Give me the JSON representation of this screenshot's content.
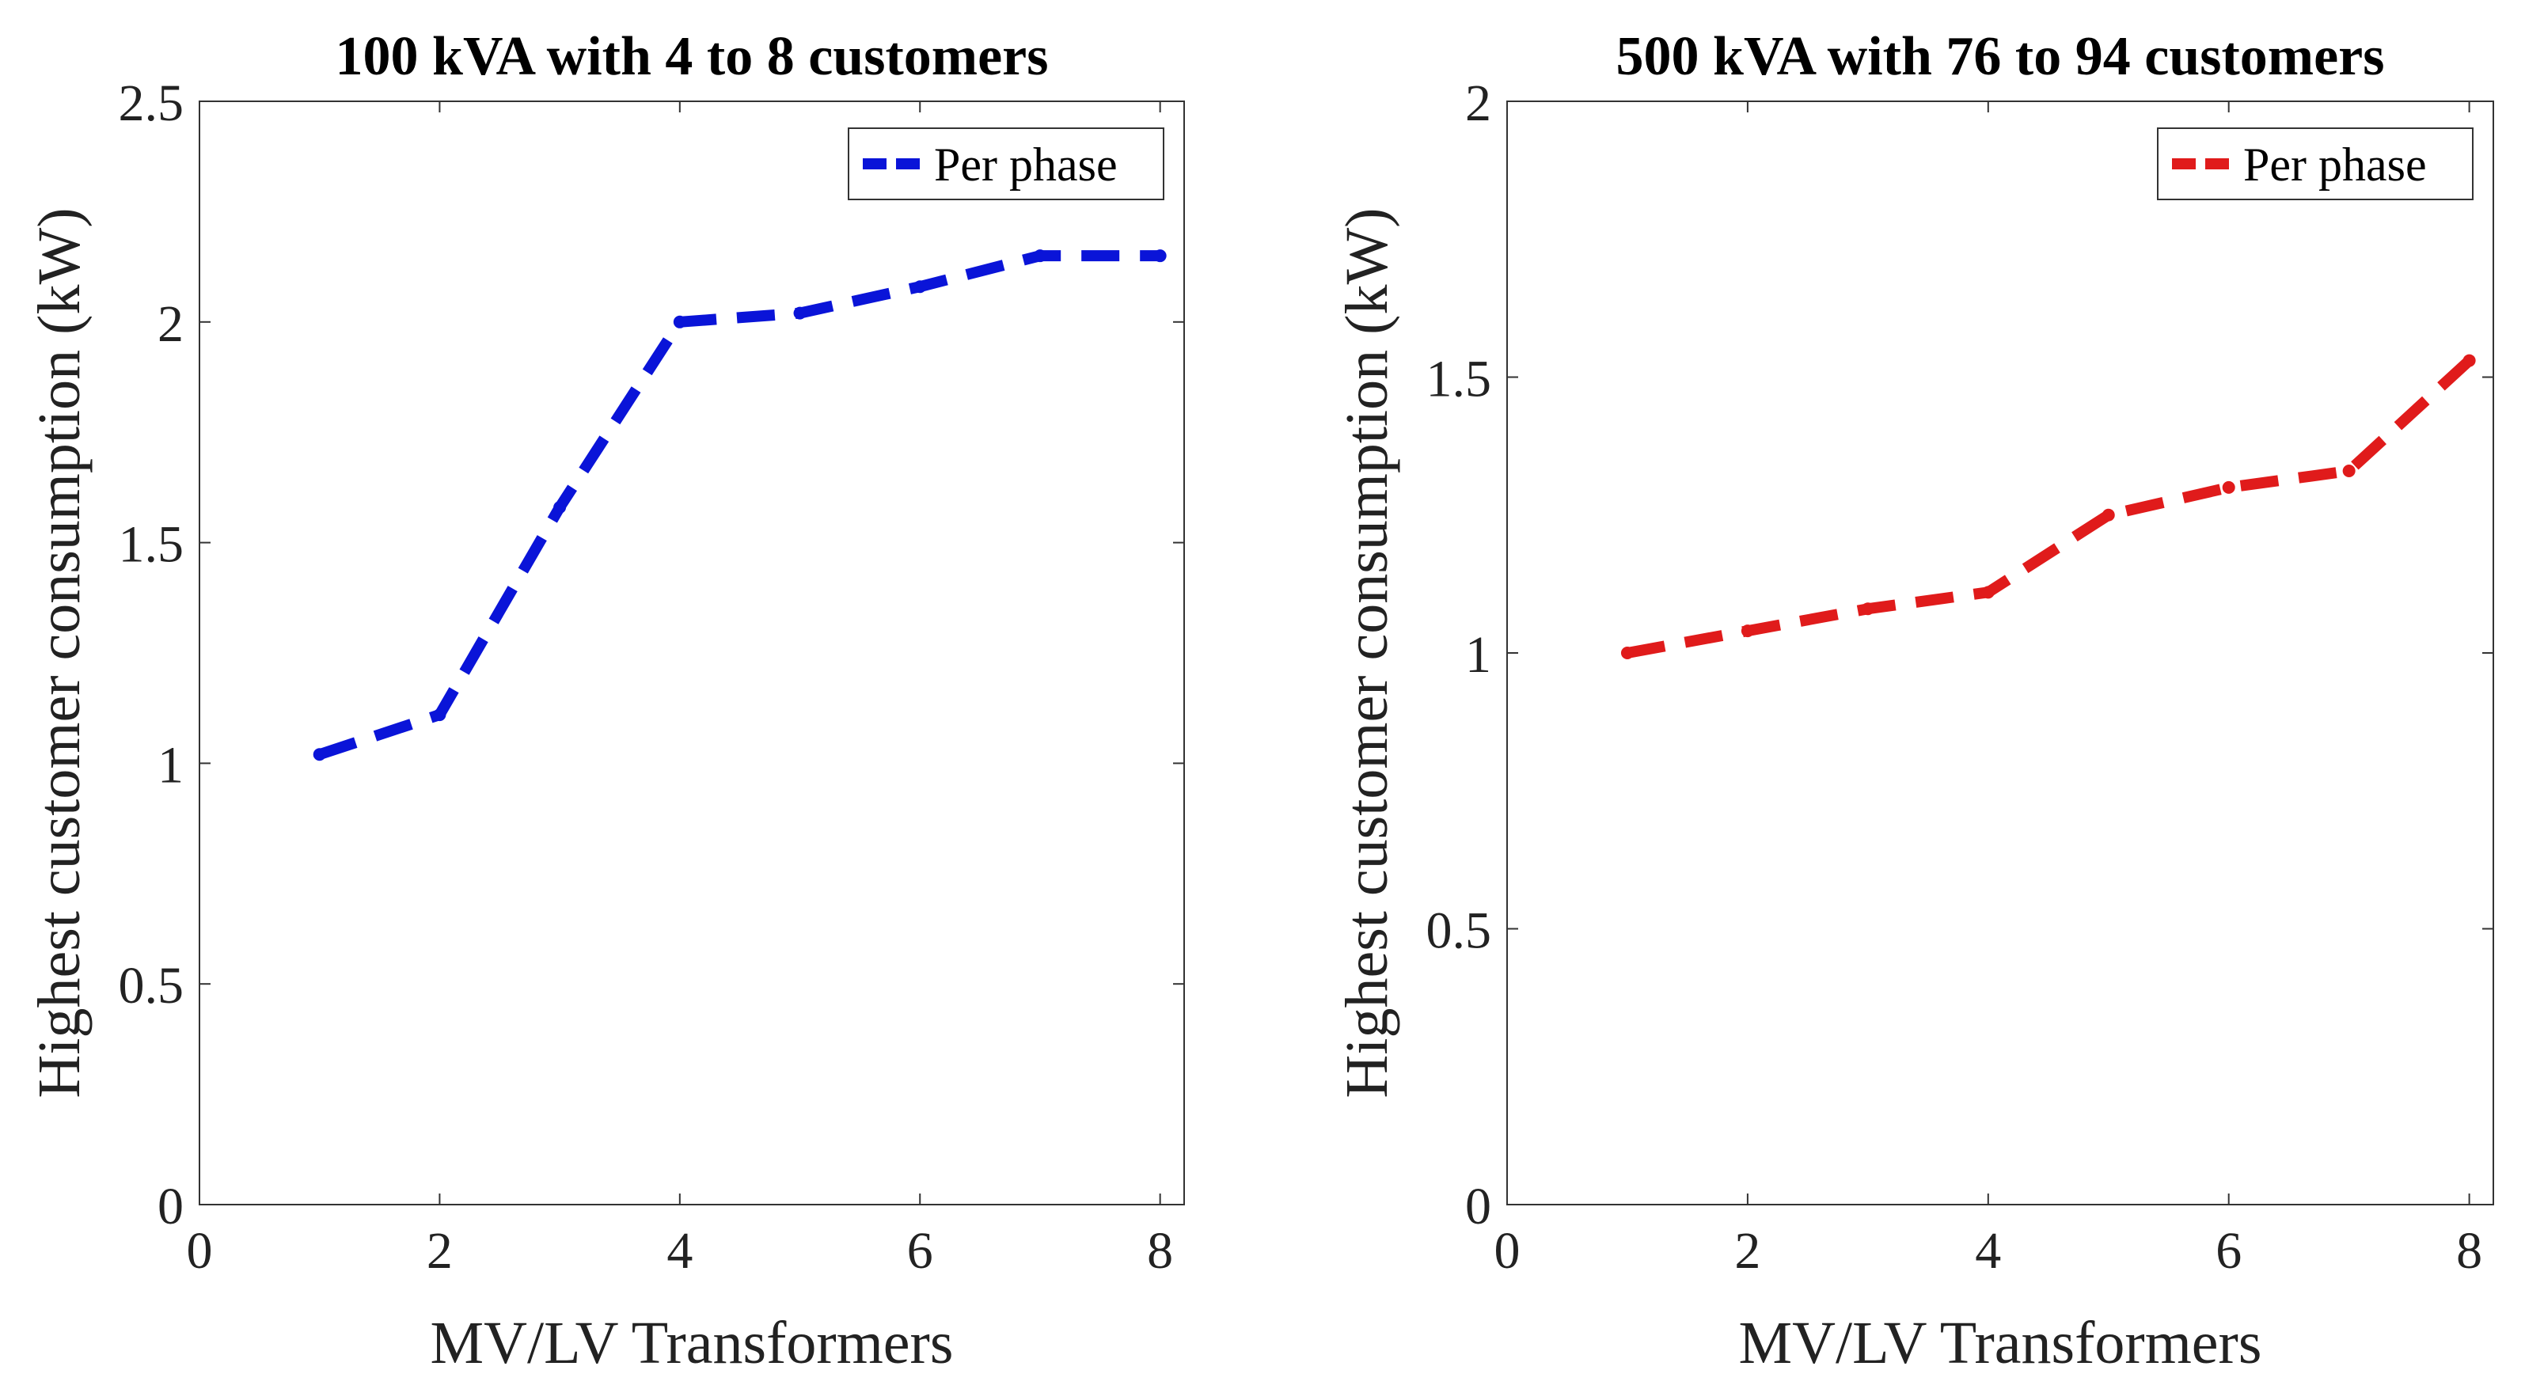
{
  "chart_data": [
    {
      "type": "line",
      "title": "100 kVA with 4 to 8 customers",
      "xlabel": "MV/LV Transformers",
      "ylabel": "Highest customer consumption (kW)",
      "xlim": [
        0,
        8.2
      ],
      "ylim": [
        0,
        2.5
      ],
      "xticks": [
        0,
        2,
        4,
        6,
        8
      ],
      "xtick_labels": [
        "0",
        "2",
        "4",
        "6",
        "8"
      ],
      "yticks": [
        0,
        0.5,
        1,
        1.5,
        2,
        2.5
      ],
      "ytick_labels": [
        "0",
        "0.5",
        "1",
        "1.5",
        "2",
        "2.5"
      ],
      "legend_position": "top-right",
      "grid": false,
      "series": [
        {
          "name": "Per phase",
          "color": "#0a14d8",
          "line_style": "dashed",
          "x": [
            1,
            2,
            3,
            4,
            5,
            6,
            7,
            8
          ],
          "y": [
            1.02,
            1.11,
            1.58,
            2.0,
            2.02,
            2.08,
            2.15,
            2.15
          ]
        }
      ]
    },
    {
      "type": "line",
      "title": "500 kVA with 76 to 94 customers",
      "xlabel": "MV/LV Transformers",
      "ylabel": "Highest customer consumption (kW)",
      "xlim": [
        0,
        8.2
      ],
      "ylim": [
        0,
        2
      ],
      "xticks": [
        0,
        2,
        4,
        6,
        8
      ],
      "xtick_labels": [
        "0",
        "2",
        "4",
        "6",
        "8"
      ],
      "yticks": [
        0,
        0.5,
        1,
        1.5,
        2
      ],
      "ytick_labels": [
        "0",
        "0.5",
        "1",
        "1.5",
        "2"
      ],
      "legend_position": "top-right",
      "grid": false,
      "series": [
        {
          "name": "Per phase",
          "color": "#e01b1b",
          "line_style": "dashed",
          "x": [
            1,
            2,
            3,
            4,
            5,
            6,
            7,
            8
          ],
          "y": [
            1.0,
            1.04,
            1.08,
            1.11,
            1.25,
            1.3,
            1.33,
            1.53
          ]
        }
      ]
    }
  ]
}
